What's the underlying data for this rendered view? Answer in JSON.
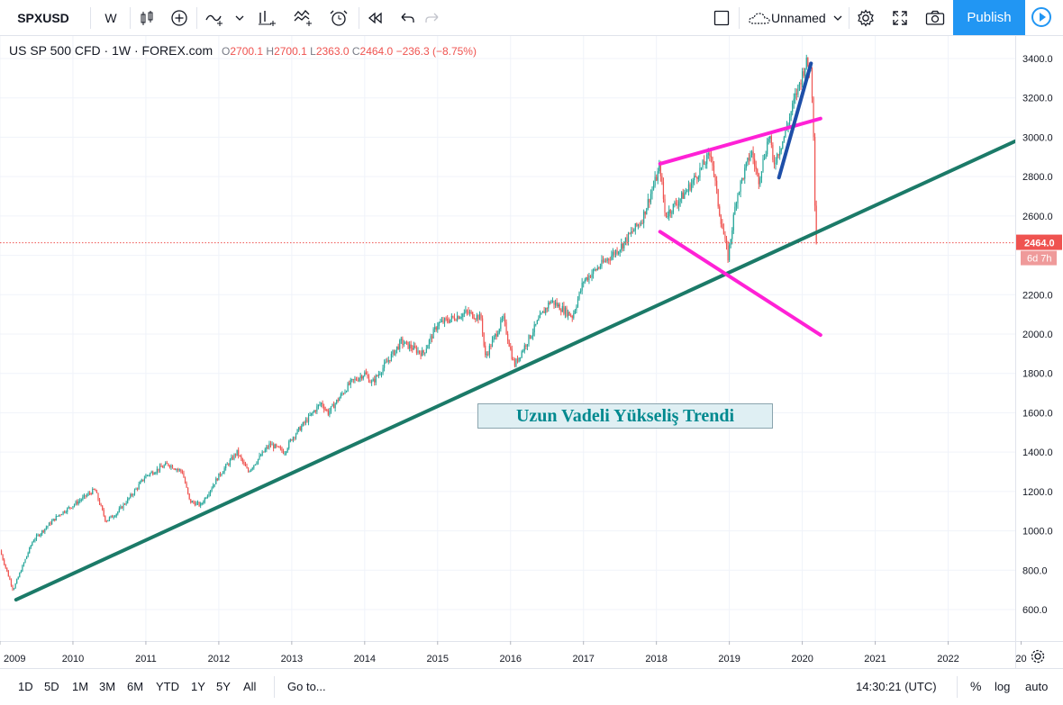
{
  "toolbar": {
    "symbol": "SPXUSD",
    "interval": "W",
    "layout_name": "Unnamed",
    "publish_label": "Publish",
    "icons": [
      "candles-icon",
      "add-indicator-icon",
      "indicators-icon",
      "chevron-down-icon",
      "compare-icon",
      "templates-icon",
      "alert-icon",
      "replay-icon",
      "undo-icon",
      "redo-icon",
      "layout-square-icon",
      "cloud-icon",
      "settings-icon",
      "fullscreen-icon",
      "camera-icon",
      "play-icon"
    ]
  },
  "legend": {
    "title": "US SP 500 CFD · 1W · FOREX.com",
    "o_label": "O",
    "o": "2700.1",
    "h_label": "H",
    "h": "2700.1",
    "l_label": "L",
    "l": "2363.0",
    "c_label": "C",
    "c": "2464.0",
    "change": "−236.3 (−8.75%)"
  },
  "price_axis": {
    "ticks": [
      "3400.0",
      "3200.0",
      "3000.0",
      "2800.0",
      "2600.0",
      "2400.0",
      "2200.0",
      "2000.0",
      "1800.0",
      "1600.0",
      "1400.0",
      "1200.0",
      "1000.0",
      "800.0",
      "600.0"
    ],
    "last_price": "2464.0",
    "countdown": "6d 7h"
  },
  "time_axis": {
    "ticks": [
      "2009",
      "2010",
      "2011",
      "2012",
      "2013",
      "2014",
      "2015",
      "2016",
      "2017",
      "2018",
      "2019",
      "2020",
      "2021",
      "2022",
      "20"
    ]
  },
  "annotation": "Uzun Vadeli Yükseliş Trendi",
  "bottom": {
    "ranges": [
      "1D",
      "5D",
      "1M",
      "3M",
      "6M",
      "YTD",
      "1Y",
      "5Y",
      "All"
    ],
    "goto": "Go to...",
    "clock": "14:30:21 (UTC)",
    "percent": "%",
    "log": "log",
    "auto": "auto"
  },
  "colors": {
    "up": "#26a69a",
    "down": "#ef5350",
    "uptrend_line": "#1b7a68",
    "megaphone": "#ff21d6",
    "steep_line": "#1e4fa8",
    "accent": "#2196f3"
  },
  "chart_data": {
    "type": "candlestick",
    "title": "US SP 500 CFD · 1W · FOREX.com",
    "ylim": [
      560,
      3450
    ],
    "xlim": [
      2009.0,
      2022.92
    ],
    "anchors": [
      [
        2009.0,
        900
      ],
      [
        2009.18,
        700
      ],
      [
        2009.45,
        950
      ],
      [
        2009.8,
        1080
      ],
      [
        2010.0,
        1130
      ],
      [
        2010.3,
        1210
      ],
      [
        2010.45,
        1050
      ],
      [
        2010.6,
        1090
      ],
      [
        2010.8,
        1180
      ],
      [
        2011.0,
        1280
      ],
      [
        2011.3,
        1340
      ],
      [
        2011.5,
        1300
      ],
      [
        2011.6,
        1150
      ],
      [
        2011.75,
        1130
      ],
      [
        2012.0,
        1280
      ],
      [
        2012.25,
        1400
      ],
      [
        2012.4,
        1300
      ],
      [
        2012.7,
        1440
      ],
      [
        2012.9,
        1400
      ],
      [
        2013.0,
        1470
      ],
      [
        2013.4,
        1650
      ],
      [
        2013.5,
        1600
      ],
      [
        2013.8,
        1750
      ],
      [
        2014.0,
        1800
      ],
      [
        2014.1,
        1750
      ],
      [
        2014.5,
        1960
      ],
      [
        2014.8,
        1900
      ],
      [
        2015.0,
        2050
      ],
      [
        2015.4,
        2110
      ],
      [
        2015.6,
        2080
      ],
      [
        2015.65,
        1880
      ],
      [
        2015.9,
        2080
      ],
      [
        2016.05,
        1840
      ],
      [
        2016.4,
        2080
      ],
      [
        2016.55,
        2170
      ],
      [
        2016.85,
        2090
      ],
      [
        2017.0,
        2270
      ],
      [
        2017.5,
        2440
      ],
      [
        2017.8,
        2580
      ],
      [
        2018.05,
        2850
      ],
      [
        2018.12,
        2600
      ],
      [
        2018.4,
        2720
      ],
      [
        2018.75,
        2920
      ],
      [
        2018.85,
        2650
      ],
      [
        2018.98,
        2390
      ],
      [
        2019.1,
        2700
      ],
      [
        2019.3,
        2930
      ],
      [
        2019.4,
        2780
      ],
      [
        2019.55,
        3020
      ],
      [
        2019.6,
        2860
      ],
      [
        2019.75,
        3000
      ],
      [
        2019.9,
        3200
      ],
      [
        2020.05,
        3380
      ],
      [
        2020.12,
        3340
      ],
      [
        2020.15,
        3100
      ],
      [
        2020.17,
        2700
      ],
      [
        2020.2,
        2464
      ]
    ],
    "drawings": [
      {
        "name": "long-term-uptrend-line",
        "color": "#1b7a68",
        "points": [
          [
            2009.22,
            650
          ],
          [
            2022.92,
            2980
          ]
        ]
      },
      {
        "name": "megaphone-upper-line",
        "color": "#ff21d6",
        "points": [
          [
            2018.05,
            2865
          ],
          [
            2020.25,
            3095
          ]
        ]
      },
      {
        "name": "megaphone-lower-line",
        "color": "#ff21d6",
        "points": [
          [
            2018.05,
            2520
          ],
          [
            2020.25,
            1995
          ]
        ]
      },
      {
        "name": "steep-trend-line",
        "color": "#1e4fa8",
        "points": [
          [
            2019.68,
            2795
          ],
          [
            2020.12,
            3375
          ]
        ]
      }
    ]
  }
}
